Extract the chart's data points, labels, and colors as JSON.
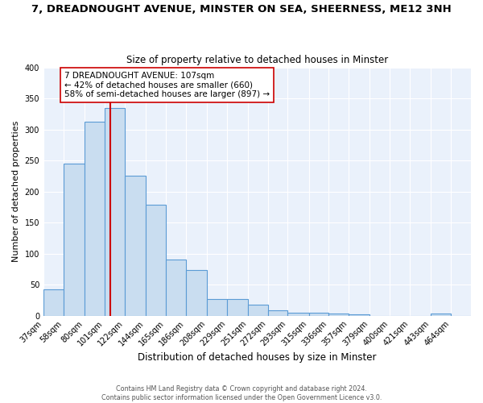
{
  "title": "7, DREADNOUGHT AVENUE, MINSTER ON SEA, SHEERNESS, ME12 3NH",
  "subtitle": "Size of property relative to detached houses in Minster",
  "xlabel": "Distribution of detached houses by size in Minster",
  "ylabel": "Number of detached properties",
  "bar_labels": [
    "37sqm",
    "58sqm",
    "80sqm",
    "101sqm",
    "122sqm",
    "144sqm",
    "165sqm",
    "186sqm",
    "208sqm",
    "229sqm",
    "251sqm",
    "272sqm",
    "293sqm",
    "315sqm",
    "336sqm",
    "357sqm",
    "379sqm",
    "400sqm",
    "421sqm",
    "443sqm",
    "464sqm"
  ],
  "bar_values": [
    42,
    245,
    313,
    335,
    226,
    179,
    90,
    74,
    27,
    27,
    18,
    9,
    5,
    5,
    3,
    2,
    0,
    0,
    0,
    4,
    0
  ],
  "bar_color": "#c9ddf0",
  "bar_edge_color": "#5b9bd5",
  "property_line_x": 107,
  "property_line_color": "#cc0000",
  "annotation_text": "7 DREADNOUGHT AVENUE: 107sqm\n← 42% of detached houses are smaller (660)\n58% of semi-detached houses are larger (897) →",
  "annotation_box_color": "#ffffff",
  "annotation_box_edge": "#cc0000",
  "ylim": [
    0,
    400
  ],
  "yticks": [
    0,
    50,
    100,
    150,
    200,
    250,
    300,
    350,
    400
  ],
  "footer_line1": "Contains HM Land Registry data © Crown copyright and database right 2024.",
  "footer_line2": "Contains public sector information licensed under the Open Government Licence v3.0.",
  "bg_color": "#eaf1fb",
  "fig_bg_color": "#ffffff",
  "grid_color": "#ffffff",
  "bin_edges": [
    37,
    58,
    80,
    101,
    122,
    144,
    165,
    186,
    208,
    229,
    251,
    272,
    293,
    315,
    336,
    357,
    379,
    400,
    421,
    443,
    464,
    485
  ]
}
